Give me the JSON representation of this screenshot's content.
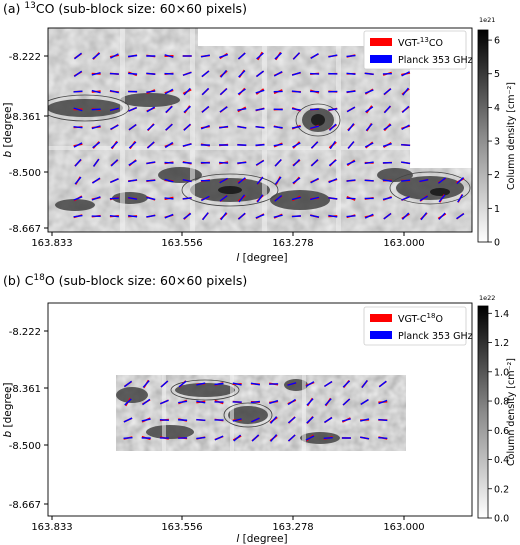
{
  "chart_data": [
    {
      "type": "heatmap",
      "panel_label": "(a)",
      "title_sup": "13",
      "title_main": "CO (sub-block size: 60×60 pixels)",
      "xlabel_italic": "l",
      "xlabel_rest": " [degree]",
      "ylabel_italic": "b",
      "ylabel_rest": " [degree]",
      "xticks": [
        "163.833",
        "163.556",
        "163.278",
        "163.000"
      ],
      "yticks": [
        "-8.222",
        "-8.361",
        "-8.500",
        "-8.667"
      ],
      "colorbar": {
        "label": "Column density [cm⁻²]",
        "multiplier": "1e21",
        "ticks": [
          "0",
          "1",
          "2",
          "3",
          "4",
          "5",
          "6"
        ],
        "range": [
          0,
          6.3
        ]
      },
      "legend": [
        {
          "label_pre": "VGT-",
          "label_sup": "13",
          "label_post": "CO",
          "color": "#ff0000"
        },
        {
          "label_pre": "Planck 353 GHz",
          "label_sup": "",
          "label_post": "",
          "color": "#0000ff"
        }
      ],
      "legend_position": "top-right"
    },
    {
      "type": "heatmap",
      "panel_label": "(b)",
      "title_sup": "18",
      "title_main": "O (sub-block size: 60×60 pixels)",
      "title_prefix": "C",
      "xlabel_italic": "l",
      "xlabel_rest": " [degree]",
      "ylabel_italic": "b",
      "ylabel_rest": " [degree]",
      "xticks": [
        "163.833",
        "163.556",
        "163.278",
        "163.000"
      ],
      "yticks": [
        "-8.222",
        "-8.361",
        "-8.500",
        "-8.667"
      ],
      "colorbar": {
        "label": "Column density [cm⁻²]",
        "multiplier": "1e22",
        "ticks": [
          "0.0",
          "0.2",
          "0.4",
          "0.6",
          "0.8",
          "1.0",
          "1.2",
          "1.4"
        ],
        "range": [
          0,
          1.45
        ]
      },
      "legend": [
        {
          "label_pre": "VGT-C",
          "label_sup": "18",
          "label_post": "O",
          "color": "#ff0000"
        },
        {
          "label_pre": "Planck 353 GHz",
          "label_sup": "",
          "label_post": "",
          "color": "#0000ff"
        }
      ],
      "legend_position": "top-right"
    }
  ]
}
